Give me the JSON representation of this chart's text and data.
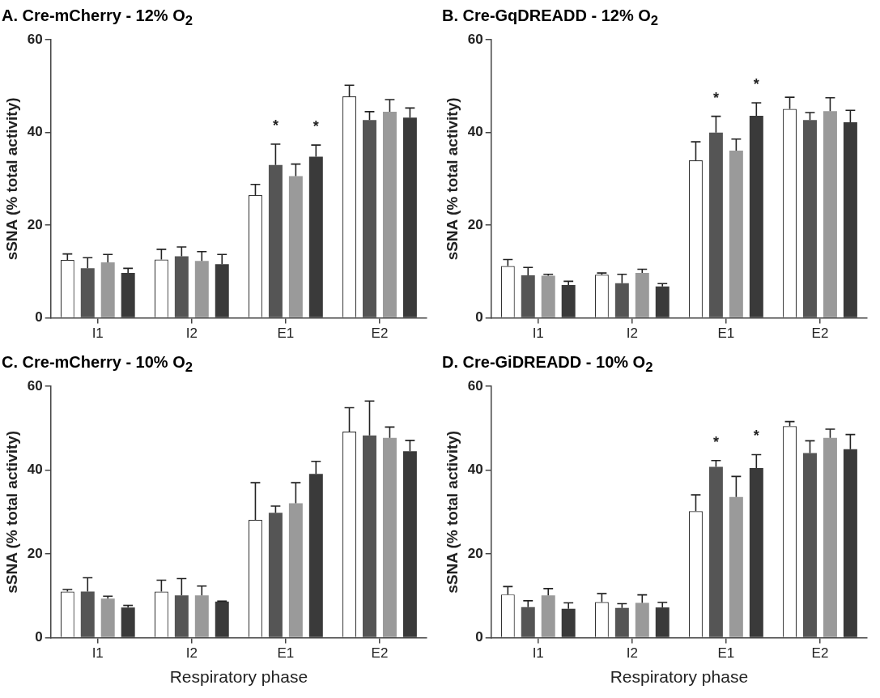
{
  "chart_data": [
    {
      "type": "bar",
      "title": "A. Cre-mCherry - 12% O$_{2}$",
      "ylabel": "sSNA (% total activity)",
      "categories": [
        "I1",
        "I2",
        "E1",
        "E2"
      ],
      "ylim": [
        0,
        60
      ],
      "yticks": [
        0,
        20,
        40,
        60
      ],
      "grid": false,
      "legend": false,
      "series": [
        {
          "color": "#ffffff",
          "values": [
            12.5,
            12.6,
            26.5,
            47.8
          ],
          "errors": [
            [
              12.5,
              13.8
            ],
            [
              12.6,
              14.8
            ],
            [
              26.5,
              28.8
            ],
            [
              47.8,
              50.2
            ]
          ]
        },
        {
          "color": "#555555",
          "values": [
            10.7,
            13.3,
            33,
            42.7
          ],
          "errors": [
            [
              10.7,
              13
            ],
            [
              13.3,
              15.3
            ],
            [
              33,
              37.5
            ],
            [
              42.7,
              44.5
            ]
          ]
        },
        {
          "color": "#9a9a9a",
          "values": [
            12,
            12.3,
            30.6,
            44.5
          ],
          "errors": [
            [
              12,
              13.7
            ],
            [
              12.3,
              14.3
            ],
            [
              30.6,
              33.2
            ],
            [
              44.5,
              47.1
            ]
          ]
        },
        {
          "color": "#3a3a3a",
          "values": [
            9.7,
            11.6,
            34.8,
            43.2
          ],
          "errors": [
            [
              9.7,
              10.7
            ],
            [
              11.6,
              13.7
            ],
            [
              34.8,
              37.3
            ],
            [
              43.2,
              45.3
            ]
          ]
        }
      ],
      "annotations": [
        "*",
        "*"
      ]
    },
    {
      "type": "bar",
      "title": "B. Cre-GqDREADD - 12% O$_{2}$",
      "ylabel": "sSNA (% total activity)",
      "categories": [
        "I1",
        "I2",
        "E1",
        "E2"
      ],
      "ylim": [
        0,
        60
      ],
      "yticks": [
        0,
        20,
        40,
        60
      ],
      "grid": false,
      "legend": false,
      "series": [
        {
          "color": "#ffffff",
          "values": [
            11.2,
            9.3,
            34,
            45.1
          ],
          "errors": [
            [
              11.2,
              12.6
            ],
            [
              9.3,
              9.7
            ],
            [
              34,
              38
            ],
            [
              45.1,
              47.6
            ]
          ]
        },
        {
          "color": "#555555",
          "values": [
            9.2,
            7.5,
            40,
            42.7
          ],
          "errors": [
            [
              9.2,
              10.9
            ],
            [
              7.5,
              9.4
            ],
            [
              40,
              43.5
            ],
            [
              42.7,
              44.3
            ]
          ]
        },
        {
          "color": "#9a9a9a",
          "values": [
            9.1,
            9.7,
            36.1,
            44.6
          ],
          "errors": [
            [
              9.1,
              9.4
            ],
            [
              9.7,
              10.5
            ],
            [
              36.1,
              38.6
            ],
            [
              44.6,
              47.5
            ]
          ]
        },
        {
          "color": "#3a3a3a",
          "values": [
            7.1,
            6.8,
            43.6,
            42.2
          ],
          "errors": [
            [
              7.1,
              7.9
            ],
            [
              6.8,
              7.4
            ],
            [
              43.6,
              46.4
            ],
            [
              42.2,
              44.8
            ]
          ]
        }
      ],
      "annotations": [
        "*",
        "*"
      ]
    },
    {
      "type": "bar",
      "title": "C. Cre-mCherry - 10% O$_{2}$",
      "ylabel": "sSNA (% total activity)",
      "xlabel": "Respiratory phase",
      "categories": [
        "I1",
        "I2",
        "E1",
        "E2"
      ],
      "ylim": [
        0,
        60
      ],
      "yticks": [
        0,
        20,
        40,
        60
      ],
      "grid": false,
      "legend": false,
      "series": [
        {
          "color": "#ffffff",
          "values": [
            11,
            11,
            28.1,
            49.2
          ],
          "errors": [
            [
              11,
              11.5
            ],
            [
              11,
              13.7
            ],
            [
              28.1,
              37
            ],
            [
              49.2,
              54.9
            ]
          ]
        },
        {
          "color": "#555555",
          "values": [
            11,
            10.1,
            29.8,
            48.3
          ],
          "errors": [
            [
              11,
              14.3
            ],
            [
              10.1,
              14.1
            ],
            [
              29.8,
              31.4
            ],
            [
              48.3,
              56.5
            ]
          ]
        },
        {
          "color": "#9a9a9a",
          "values": [
            9.3,
            10.1,
            32.1,
            47.7
          ],
          "errors": [
            [
              9.3,
              9.9
            ],
            [
              10.1,
              12.3
            ],
            [
              32.1,
              37
            ],
            [
              47.7,
              50.3
            ]
          ]
        },
        {
          "color": "#3a3a3a",
          "values": [
            7.2,
            8.6,
            39.1,
            44.5
          ],
          "errors": [
            [
              7.2,
              7.7
            ],
            [
              8.6,
              8.7
            ],
            [
              39.1,
              42.1
            ],
            [
              44.5,
              47.1
            ]
          ]
        }
      ]
    },
    {
      "type": "bar",
      "title": "D. Cre-GiDREADD - 10% O$_{2}$",
      "ylabel": "sSNA (% total activity)",
      "xlabel": "Respiratory phase",
      "categories": [
        "I1",
        "I2",
        "E1",
        "E2"
      ],
      "ylim": [
        0,
        60
      ],
      "yticks": [
        0,
        20,
        40,
        60
      ],
      "grid": false,
      "legend": false,
      "series": [
        {
          "color": "#ffffff",
          "values": [
            10.3,
            8.5,
            30.2,
            50.5
          ],
          "errors": [
            [
              10.3,
              12.2
            ],
            [
              8.5,
              10.5
            ],
            [
              30.2,
              34.1
            ],
            [
              50.5,
              51.6
            ]
          ]
        },
        {
          "color": "#555555",
          "values": [
            7.3,
            7.1,
            40.8,
            44.1
          ],
          "errors": [
            [
              7.3,
              8.8
            ],
            [
              7.1,
              8.1
            ],
            [
              40.8,
              42.3
            ],
            [
              44.1,
              47
            ]
          ]
        },
        {
          "color": "#9a9a9a",
          "values": [
            10.1,
            8.3,
            33.6,
            47.7
          ],
          "errors": [
            [
              10.1,
              11.7
            ],
            [
              8.3,
              10.2
            ],
            [
              33.6,
              38.5
            ],
            [
              47.7,
              49.8
            ]
          ]
        },
        {
          "color": "#3a3a3a",
          "values": [
            6.9,
            7.2,
            40.5,
            45
          ],
          "errors": [
            [
              6.9,
              8.3
            ],
            [
              7.2,
              8.4
            ],
            [
              40.5,
              43.7
            ],
            [
              45,
              48.5
            ]
          ]
        }
      ],
      "annotations": [
        "*",
        "*"
      ]
    }
  ]
}
